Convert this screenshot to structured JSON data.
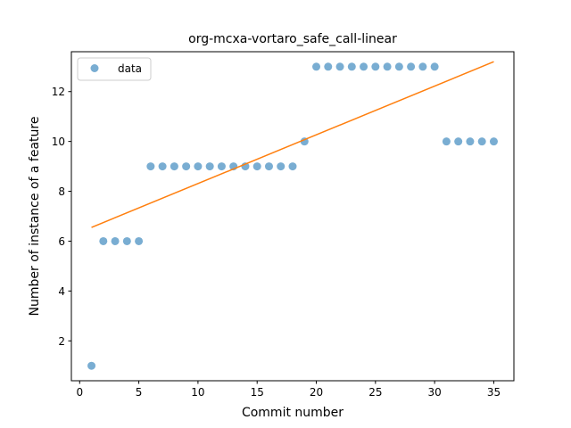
{
  "chart_data": {
    "type": "scatter",
    "title": "org-mcxa-vortaro_safe_call-linear",
    "xlabel": "Commit number",
    "ylabel": "Number of instance of a feature",
    "xlim": [
      -0.7,
      36.7
    ],
    "ylim": [
      0.4,
      13.6
    ],
    "x_ticks": [
      0,
      5,
      10,
      15,
      20,
      25,
      30,
      35
    ],
    "y_ticks": [
      2,
      4,
      6,
      8,
      10,
      12
    ],
    "grid": false,
    "legend_position": "upper-left",
    "series": [
      {
        "name": "data",
        "kind": "scatter",
        "color": "#1f77b4",
        "x": [
          1,
          2,
          3,
          4,
          5,
          6,
          7,
          8,
          9,
          10,
          11,
          12,
          13,
          14,
          15,
          16,
          17,
          18,
          19,
          20,
          21,
          22,
          23,
          24,
          25,
          26,
          27,
          28,
          29,
          30,
          31,
          32,
          33,
          34,
          35
        ],
        "y": [
          1,
          6,
          6,
          6,
          6,
          9,
          9,
          9,
          9,
          9,
          9,
          9,
          9,
          9,
          9,
          9,
          9,
          9,
          10,
          13,
          13,
          13,
          13,
          13,
          13,
          13,
          13,
          13,
          13,
          13,
          10,
          10,
          10,
          10,
          10
        ]
      },
      {
        "kind": "line",
        "color": "#ff7f0e",
        "x": [
          1,
          35
        ],
        "y": [
          6.55,
          13.2
        ]
      }
    ]
  }
}
